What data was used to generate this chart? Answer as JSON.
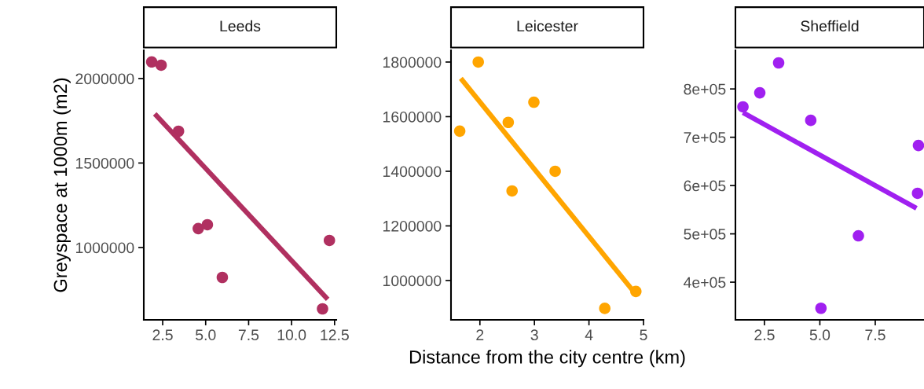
{
  "chart_data": [
    {
      "type": "scatter",
      "title": "Leeds",
      "ylabel": "Greyspace at 1000m (m2)",
      "xlim": [
        1.4,
        12.6
      ],
      "xticks": [
        {
          "value": 2.5,
          "label": "2.5"
        },
        {
          "value": 5,
          "label": "5.0"
        },
        {
          "value": 7.5,
          "label": "7.5"
        },
        {
          "value": 10,
          "label": "10.0"
        },
        {
          "value": 12.5,
          "label": "12.5"
        }
      ],
      "ylim": [
        572000,
        2167000
      ],
      "yticks": [
        1000000,
        1500000,
        2000000
      ],
      "grid": false,
      "series": [
        {
          "marker": "circle",
          "color": "#b03060",
          "x": [
            1.86,
            2.41,
            3.42,
            4.57,
            5.1,
            5.97,
            12.2,
            11.8
          ],
          "values": [
            2098000,
            2079000,
            1688000,
            1112000,
            1135000,
            823000,
            1042000,
            637000
          ]
        },
        {
          "type": "line",
          "color": "#b03060",
          "line_style": "solid",
          "x": [
            2.04,
            12.1
          ],
          "values": [
            1791000,
            693000
          ]
        }
      ]
    },
    {
      "type": "scatter",
      "title": "Leicester",
      "xlabel": "Distance from the city centre (km)",
      "xlim": [
        1.47,
        5.0
      ],
      "xticks": [
        2,
        3,
        4,
        5
      ],
      "ylim": [
        856000,
        1843000
      ],
      "yticks": [
        1000000,
        1200000,
        1400000,
        1600000,
        1800000
      ],
      "grid": false,
      "series": [
        {
          "marker": "circle",
          "color": "#ffa500",
          "x": [
            1.63,
            1.97,
            2.52,
            2.59,
            2.99,
            3.38,
            4.29,
            4.86
          ],
          "values": [
            1547000,
            1800000,
            1579000,
            1328000,
            1653000,
            1400000,
            898000,
            960000
          ]
        },
        {
          "type": "line",
          "color": "#ffa500",
          "line_style": "solid",
          "x": [
            1.65,
            4.83
          ],
          "values": [
            1740000,
            957000
          ]
        }
      ]
    },
    {
      "type": "scatter",
      "title": "Sheffield",
      "xlim": [
        1.19,
        9.7
      ],
      "xticks": [
        {
          "value": 2.5,
          "label": "2.5"
        },
        {
          "value": 5,
          "label": "5.0"
        },
        {
          "value": 7.5,
          "label": "7.5"
        }
      ],
      "ylim": [
        322000,
        880000
      ],
      "yticks": [
        {
          "value": 400000,
          "label": "4e+05"
        },
        {
          "value": 500000,
          "label": "5e+05"
        },
        {
          "value": 600000,
          "label": "6e+05"
        },
        {
          "value": 700000,
          "label": "7e+05"
        },
        {
          "value": 800000,
          "label": "8e+05"
        }
      ],
      "grid": false,
      "series": [
        {
          "marker": "circle",
          "color": "#a020f0",
          "x": [
            1.53,
            2.29,
            3.14,
            4.59,
            9.45,
            9.41,
            6.74,
            5.05
          ],
          "values": [
            763000,
            792000,
            854000,
            735000,
            683000,
            584000,
            496000,
            346000
          ]
        },
        {
          "type": "line",
          "color": "#a020f0",
          "line_style": "solid",
          "x": [
            1.53,
            9.36
          ],
          "values": [
            751000,
            553000
          ]
        }
      ]
    }
  ]
}
